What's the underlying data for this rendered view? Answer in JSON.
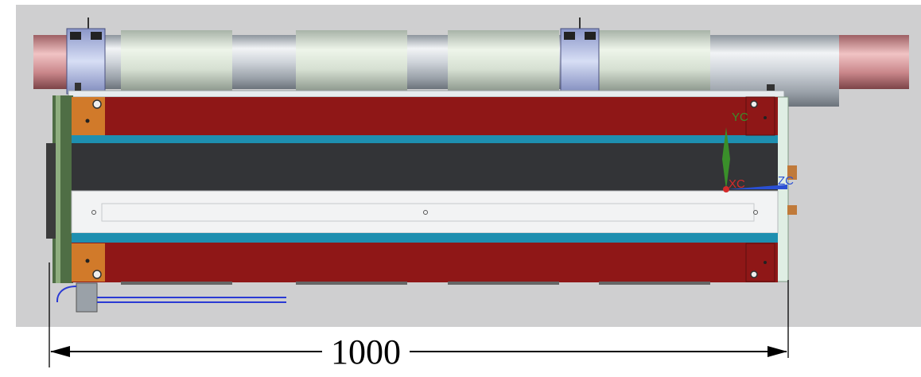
{
  "viewport": {
    "axes": {
      "y_label": "YC",
      "x_label": "XC",
      "z_label": "ZC"
    }
  },
  "dimension": {
    "value": "1000"
  },
  "colors": {
    "background_gray": "#cfcfd0",
    "housing_red": "#8f1717",
    "stripe_teal": "#1e8fb0",
    "core_dark": "#333437",
    "mount_orange": "#d17a2a",
    "pipe_copper": "#c98a8a",
    "axis_y": "#3a8f2a",
    "axis_x": "#d42a2a",
    "axis_z": "#2a50d4"
  }
}
